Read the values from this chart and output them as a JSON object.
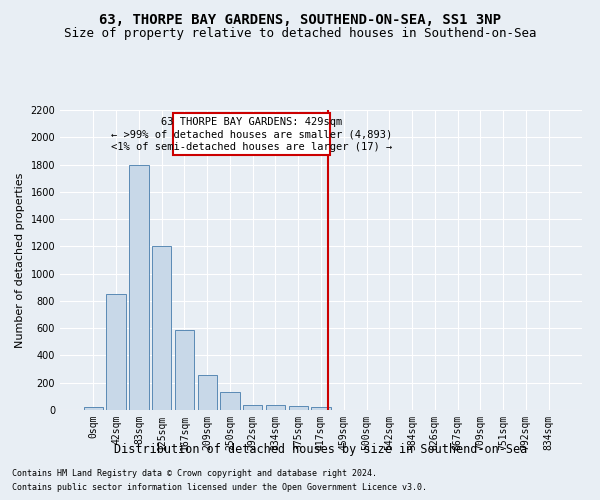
{
  "title": "63, THORPE BAY GARDENS, SOUTHEND-ON-SEA, SS1 3NP",
  "subtitle": "Size of property relative to detached houses in Southend-on-Sea",
  "xlabel": "Distribution of detached houses by size in Southend-on-Sea",
  "ylabel": "Number of detached properties",
  "footnote1": "Contains HM Land Registry data © Crown copyright and database right 2024.",
  "footnote2": "Contains public sector information licensed under the Open Government Licence v3.0.",
  "bar_labels": [
    "0sqm",
    "42sqm",
    "83sqm",
    "125sqm",
    "167sqm",
    "209sqm",
    "250sqm",
    "292sqm",
    "334sqm",
    "375sqm",
    "417sqm",
    "459sqm",
    "500sqm",
    "542sqm",
    "584sqm",
    "626sqm",
    "667sqm",
    "709sqm",
    "751sqm",
    "792sqm",
    "834sqm"
  ],
  "bar_values": [
    25,
    850,
    1800,
    1200,
    590,
    255,
    135,
    40,
    35,
    30,
    20,
    0,
    0,
    0,
    0,
    0,
    0,
    0,
    0,
    0,
    0
  ],
  "bar_color": "#c8d8e8",
  "bar_edgecolor": "#5a8ab5",
  "vline_x": 10.286,
  "vline_color": "#cc0000",
  "annotation_line1": "63 THORPE BAY GARDENS: 429sqm",
  "annotation_line2": "← >99% of detached houses are smaller (4,893)",
  "annotation_line3": "<1% of semi-detached houses are larger (17) →",
  "annotation_box_color": "#cc0000",
  "ylim": [
    0,
    2200
  ],
  "yticks": [
    0,
    200,
    400,
    600,
    800,
    1000,
    1200,
    1400,
    1600,
    1800,
    2000,
    2200
  ],
  "background_color": "#e8eef4",
  "grid_color": "#ffffff",
  "title_fontsize": 10,
  "subtitle_fontsize": 9,
  "xlabel_fontsize": 8.5,
  "ylabel_fontsize": 8,
  "tick_fontsize": 7,
  "annotation_fontsize": 7.5,
  "footnote_fontsize": 6
}
